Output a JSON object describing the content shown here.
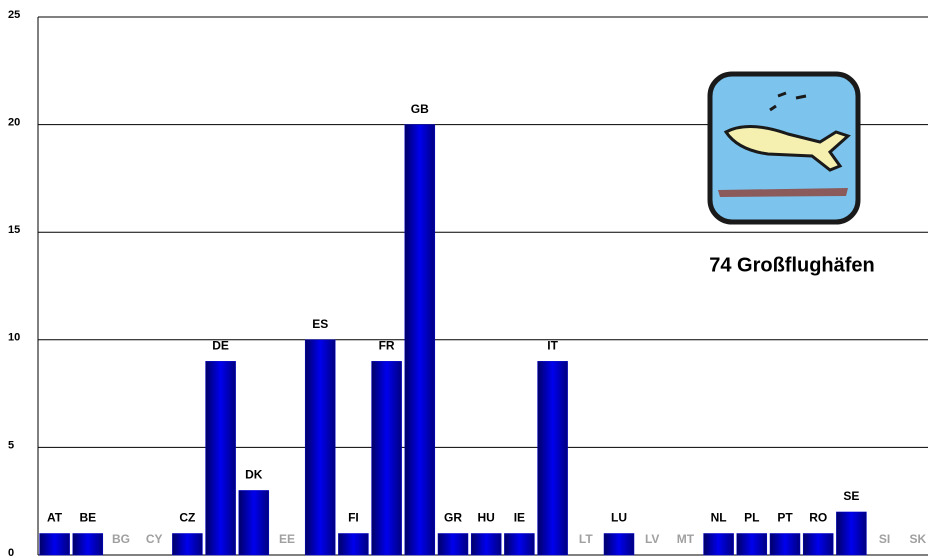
{
  "chart_data": {
    "type": "bar",
    "annotation": "74 Großflughäfen",
    "categories": [
      "AT",
      "BE",
      "BG",
      "CY",
      "CZ",
      "DE",
      "DK",
      "EE",
      "ES",
      "FI",
      "FR",
      "GB",
      "GR",
      "HU",
      "IE",
      "IT",
      "LT",
      "LU",
      "LV",
      "MT",
      "NL",
      "PL",
      "PT",
      "RO",
      "SE",
      "SI",
      "SK"
    ],
    "values": [
      1,
      1,
      0,
      0,
      1,
      9,
      3,
      0,
      10,
      1,
      9,
      20,
      1,
      1,
      1,
      9,
      0,
      1,
      0,
      0,
      1,
      1,
      1,
      1,
      2,
      0,
      0
    ],
    "color": "#0000cc",
    "ylim": [
      0,
      25
    ],
    "yticks": [
      0,
      5,
      10,
      15,
      20,
      25
    ],
    "grid": true
  }
}
